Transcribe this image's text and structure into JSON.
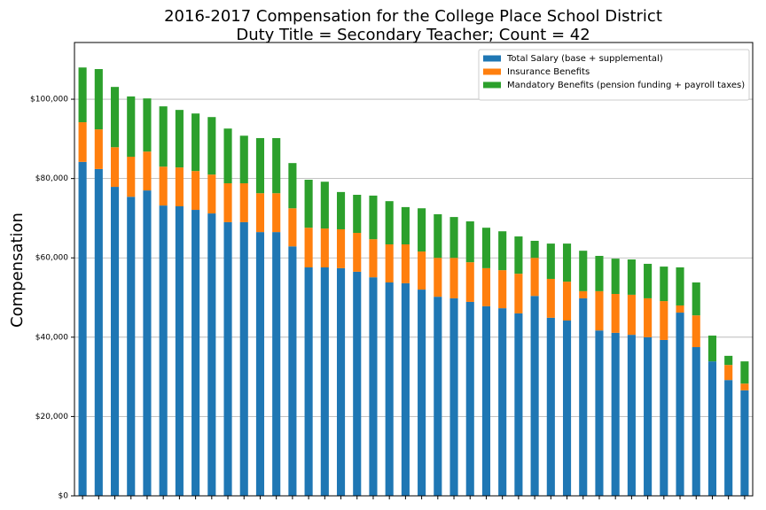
{
  "chart_data": {
    "type": "stacked_bar",
    "title": "2016-2017 Compensation for the College Place School District",
    "subtitle": "Duty Title = Secondary Teacher; Count = 42",
    "ylabel": "Compensation",
    "categories": [
      null,
      null,
      null,
      null,
      null,
      null,
      null,
      null,
      null,
      null,
      null,
      null,
      null,
      null,
      null,
      null,
      null,
      null,
      null,
      null,
      null,
      null,
      null,
      null,
      null,
      null,
      null,
      null,
      null,
      null,
      null,
      null,
      null,
      null,
      null,
      null,
      null,
      null,
      null,
      null,
      null,
      null
    ],
    "series": [
      {
        "name": "Total Salary (base + supplemental)",
        "color": "#1f77b4",
        "values": [
          84200,
          82400,
          77900,
          75400,
          77000,
          73200,
          73000,
          72100,
          71200,
          69000,
          69000,
          66500,
          66500,
          62900,
          57600,
          57600,
          57400,
          56500,
          55100,
          53800,
          53600,
          52000,
          50200,
          49800,
          48900,
          47800,
          47300,
          46000,
          50400,
          44900,
          44200,
          49800,
          41700,
          41100,
          40600,
          40000,
          39300,
          46200,
          37500,
          33900,
          29200,
          26600
        ]
      },
      {
        "name": "Insurance Benefits",
        "color": "#ff7f0e",
        "values": [
          10000,
          10000,
          10000,
          10100,
          9800,
          9800,
          9800,
          9800,
          9800,
          9800,
          9800,
          9800,
          9800,
          9600,
          10000,
          9800,
          9800,
          9800,
          9600,
          9600,
          9800,
          9600,
          9800,
          10200,
          10000,
          9600,
          9600,
          10000,
          9600,
          9800,
          9800,
          1800,
          9900,
          9800,
          10100,
          9800,
          9800,
          1800,
          8000,
          0,
          3800,
          1700
        ]
      },
      {
        "name": "Mandatory Benefits (pension funding + payroll taxes)",
        "color": "#2ca02c",
        "values": [
          13800,
          15200,
          15200,
          15200,
          13400,
          15200,
          14500,
          14500,
          14500,
          13800,
          12000,
          13900,
          13900,
          11400,
          12100,
          11800,
          9400,
          9600,
          11000,
          10900,
          9400,
          10900,
          11000,
          10300,
          10300,
          10200,
          9800,
          9400,
          4300,
          8900,
          9600,
          10200,
          8900,
          8900,
          8900,
          8700,
          8700,
          9600,
          8300,
          6500,
          2300,
          5600
        ]
      }
    ],
    "ylim": [
      0,
      114300
    ],
    "yticks": [
      {
        "value": 0,
        "label": "$0"
      },
      {
        "value": 20000,
        "label": "$20,000"
      },
      {
        "value": 40000,
        "label": "$40,000"
      },
      {
        "value": 60000,
        "label": "$60,000"
      },
      {
        "value": 80000,
        "label": "$80,000"
      },
      {
        "value": 100000,
        "label": "$100,000"
      }
    ],
    "grid": true,
    "legend": "upper right"
  }
}
